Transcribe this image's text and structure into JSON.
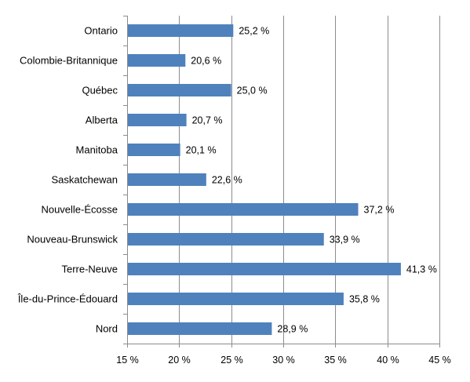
{
  "chart_data": {
    "type": "bar",
    "orientation": "horizontal",
    "title": "",
    "xlabel": "",
    "ylabel": "",
    "categories": [
      "Ontario",
      "Colombie-Britannique",
      "Québec",
      "Alberta",
      "Manitoba",
      "Saskatchewan",
      "Nouvelle-Écosse",
      "Nouveau-Brunswick",
      "Terre-Neuve",
      "Île-du-Prince-Édouard",
      "Nord"
    ],
    "values": [
      25.2,
      20.6,
      25.0,
      20.7,
      20.1,
      22.6,
      37.2,
      33.9,
      41.3,
      35.8,
      28.9
    ],
    "value_labels": [
      "25,2 %",
      "20,6 %",
      "25,0 %",
      "20,7 %",
      "20,1 %",
      "22,6 %",
      "37,2 %",
      "33,9 %",
      "41,3 %",
      "35,8 %",
      "28,9 %"
    ],
    "xlim": [
      15,
      45
    ],
    "x_ticks": [
      15,
      20,
      25,
      30,
      35,
      40,
      45
    ],
    "x_tick_labels": [
      "15 %",
      "20 %",
      "25 %",
      "30 %",
      "35 %",
      "40 %",
      "45 %"
    ],
    "grid": true,
    "legend": "none",
    "bar_color": "#4f81bd"
  }
}
